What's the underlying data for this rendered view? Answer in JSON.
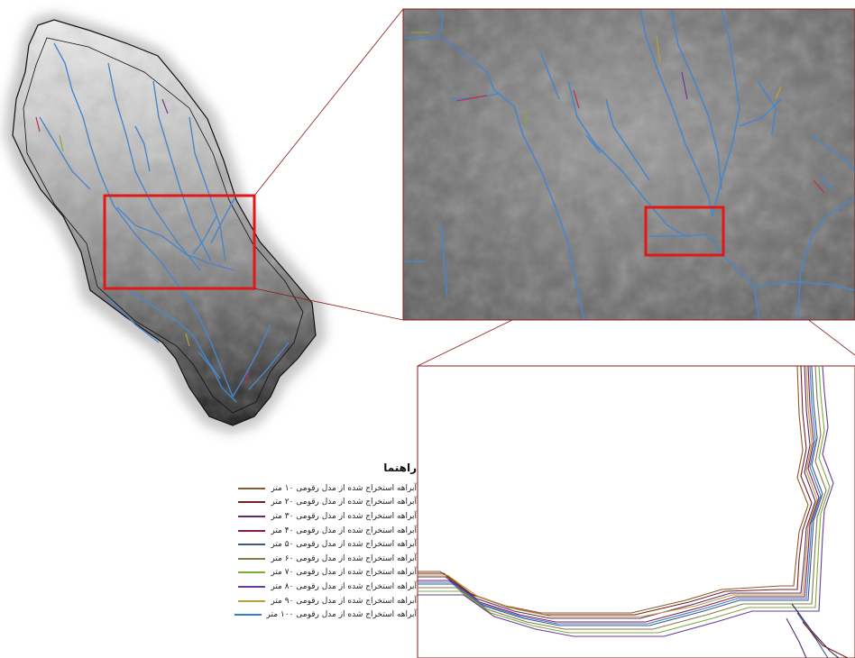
{
  "legend": {
    "title": "راهنما",
    "items": [
      {
        "label": "آبراهه استخراج شده از مدل رقومی ۱۰ متر",
        "color": "#8b5a2b"
      },
      {
        "label": "آبراهه استخراج شده از مدل رقومی ۲۰ متر",
        "color": "#7a1f1f"
      },
      {
        "label": "آبراهه استخراج شده از مدل رقومی ۳۰ متر",
        "color": "#5b2c6f"
      },
      {
        "label": "آبراهه استخراج شده از مدل رقومی ۴۰ متر",
        "color": "#8b1a4a"
      },
      {
        "label": "آبراهه استخراج شده از مدل رقومی ۵۰ متر",
        "color": "#3b5a8a"
      },
      {
        "label": "آبراهه استخراج شده از مدل رقومی ۶۰ متر",
        "color": "#8a7a4a"
      },
      {
        "label": "آبراهه استخراج شده از مدل رقومی ۷۰ متر",
        "color": "#7cab3a"
      },
      {
        "label": "آبراهه استخراج شده از مدل رقومی ۸۰ متر",
        "color": "#6a3a9a"
      },
      {
        "label": "آبراهه استخراج شده از مدل رقومی ۹۰ متر",
        "color": "#b8a03a"
      },
      {
        "label": "آبراهه استخراج شده از مدل رقومی ۱۰۰ متر",
        "color": "#2f7fd0"
      }
    ]
  },
  "colors": {
    "highlight_box": "#e01818",
    "connector": "#8b1a1a",
    "stream": "#4a86c8",
    "boundary": "#111111"
  }
}
